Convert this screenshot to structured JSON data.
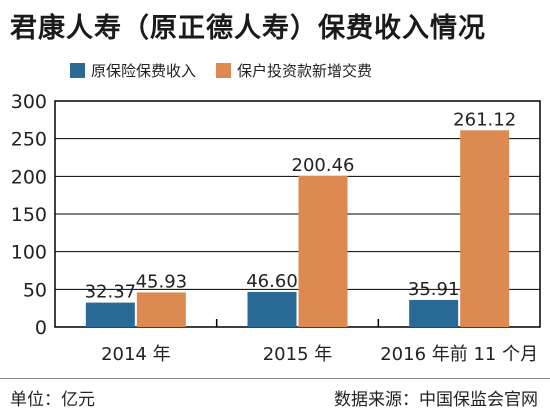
{
  "title": "君康人寿（原正德人寿）保费收入情况",
  "footer": {
    "unit": "单位：亿元",
    "source": "数据来源：中国保监会官网"
  },
  "colors": {
    "series1": "#2a6a97",
    "series2": "#dd8a52",
    "grid": "#000000"
  },
  "chart_data": {
    "type": "bar",
    "categories": [
      "2014 年",
      "2015 年",
      "2016 年前 11 个月"
    ],
    "series": [
      {
        "name": "原保险保费收入",
        "values": [
          32.37,
          46.6,
          35.91
        ],
        "labels": [
          "32.37",
          "46.60",
          "35.91"
        ]
      },
      {
        "name": "保户投资款新增交费",
        "values": [
          45.93,
          200.46,
          261.12
        ],
        "labels": [
          "45.93",
          "200.46",
          "261.12"
        ]
      }
    ],
    "yticks": [
      0,
      50,
      100,
      150,
      200,
      250,
      300
    ],
    "ylim": [
      0,
      300
    ],
    "grid": true,
    "legend": "top"
  }
}
